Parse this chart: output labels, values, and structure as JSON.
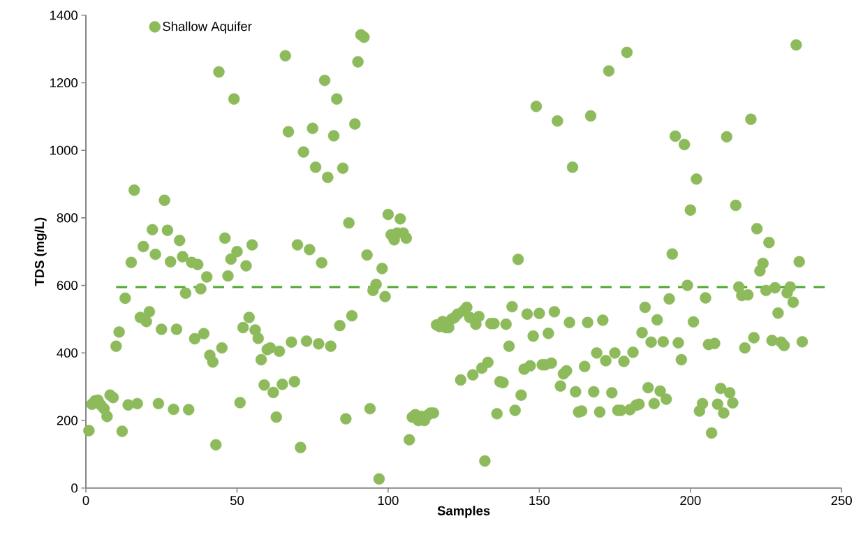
{
  "chart_data": {
    "type": "scatter",
    "xlabel": "Samples",
    "ylabel": "TDS (mg/L)",
    "xlim": [
      0,
      250
    ],
    "xticks": [
      0,
      50,
      100,
      150,
      200,
      250
    ],
    "ylim": [
      0,
      1400
    ],
    "yticks": [
      0,
      200,
      400,
      600,
      800,
      1000,
      1200,
      1400
    ],
    "grid": false,
    "legend": "top left",
    "ref_lines": [
      {
        "axis": "y",
        "value": 595,
        "color": "#4ea72e",
        "line_style": "dashed"
      }
    ],
    "series": [
      {
        "name": "Shallow Aquifer",
        "color": "#8dbb5c",
        "x": [
          1,
          2,
          3,
          4,
          5,
          6,
          7,
          8,
          9,
          10,
          11,
          12,
          13,
          14,
          15,
          16,
          17,
          18,
          19,
          20,
          21,
          22,
          23,
          24,
          25,
          26,
          27,
          28,
          29,
          30,
          31,
          32,
          33,
          34,
          35,
          36,
          37,
          38,
          39,
          40,
          41,
          42,
          43,
          44,
          45,
          46,
          47,
          48,
          49,
          50,
          51,
          52,
          53,
          54,
          55,
          56,
          57,
          58,
          59,
          60,
          61,
          62,
          63,
          64,
          65,
          66,
          67,
          68,
          69,
          70,
          71,
          72,
          73,
          74,
          75,
          76,
          77,
          78,
          79,
          80,
          81,
          82,
          83,
          84,
          85,
          86,
          87,
          88,
          89,
          90,
          91,
          92,
          93,
          94,
          95,
          96,
          97,
          98,
          99,
          100,
          101,
          102,
          103,
          104,
          105,
          106,
          107,
          108,
          109,
          110,
          111,
          112,
          113,
          114,
          115,
          116,
          117,
          118,
          119,
          120,
          121,
          122,
          123,
          124,
          125,
          126,
          127,
          128,
          129,
          130,
          131,
          132,
          133,
          134,
          135,
          136,
          137,
          138,
          139,
          140,
          141,
          142,
          143,
          144,
          145,
          146,
          147,
          148,
          149,
          150,
          151,
          152,
          153,
          154,
          155,
          156,
          157,
          158,
          159,
          160,
          161,
          162,
          163,
          164,
          165,
          166,
          167,
          168,
          169,
          170,
          171,
          172,
          173,
          174,
          175,
          176,
          177,
          178,
          179,
          180,
          181,
          182,
          183,
          184,
          185,
          186,
          187,
          188,
          189,
          190,
          191,
          192,
          193,
          194,
          195,
          196,
          197,
          198,
          199,
          200,
          201,
          202,
          203,
          204,
          205,
          206,
          207,
          208,
          209,
          210,
          211,
          212,
          213,
          214,
          215,
          216,
          217,
          218,
          219,
          220,
          221,
          222,
          223,
          224,
          225,
          226,
          227,
          228,
          229,
          230,
          231,
          232,
          233,
          234,
          235,
          236,
          237
        ],
        "values": [
          170,
          248,
          258,
          260,
          245,
          235,
          212,
          275,
          268,
          420,
          462,
          168,
          562,
          246,
          668,
          882,
          250,
          505,
          715,
          493,
          522,
          765,
          692,
          250,
          470,
          852,
          763,
          670,
          233,
          470,
          733,
          685,
          577,
          232,
          668,
          442,
          662,
          590,
          457,
          625,
          393,
          373,
          128,
          1232,
          415,
          740,
          628,
          678,
          1152,
          700,
          253,
          475,
          658,
          505,
          720,
          468,
          443,
          380,
          305,
          410,
          415,
          283,
          210,
          405,
          307,
          1280,
          1055,
          432,
          315,
          720,
          120,
          995,
          435,
          706,
          1065,
          950,
          427,
          667,
          1207,
          920,
          420,
          1043,
          1152,
          481,
          947,
          205,
          785,
          510,
          1078,
          1262,
          1342,
          1335,
          690,
          235,
          585,
          603,
          27,
          650,
          567,
          810,
          750,
          735,
          755,
          797,
          755,
          740,
          143,
          210,
          217,
          200,
          212,
          200,
          215,
          222,
          222,
          483,
          478,
          493,
          475,
          475,
          500,
          505,
          515,
          320,
          525,
          535,
          505,
          335,
          485,
          508,
          355,
          80,
          372,
          487,
          487,
          220,
          315,
          312,
          485,
          420,
          537,
          230,
          677,
          275,
          352,
          515,
          362,
          450,
          1130,
          517,
          365,
          365,
          458,
          370,
          522,
          1087,
          302,
          338,
          347,
          490,
          950,
          285,
          225,
          228,
          360,
          490,
          1102,
          285,
          400,
          225,
          497,
          377,
          1235,
          282,
          400,
          230,
          230,
          375,
          1290,
          232,
          402,
          245,
          248,
          460,
          535,
          297,
          432,
          250,
          498,
          287,
          433,
          263,
          560,
          693,
          1042,
          430,
          380,
          1017,
          600,
          823,
          492,
          915,
          228,
          250,
          563,
          425,
          163,
          428,
          248,
          295,
          222,
          1040,
          282,
          252,
          837,
          595,
          570,
          415,
          572,
          1092,
          445,
          768,
          643,
          665,
          585,
          727,
          437,
          593,
          518,
          432,
          422,
          578,
          595,
          550,
          1312,
          670,
          433
        ]
      }
    ]
  }
}
